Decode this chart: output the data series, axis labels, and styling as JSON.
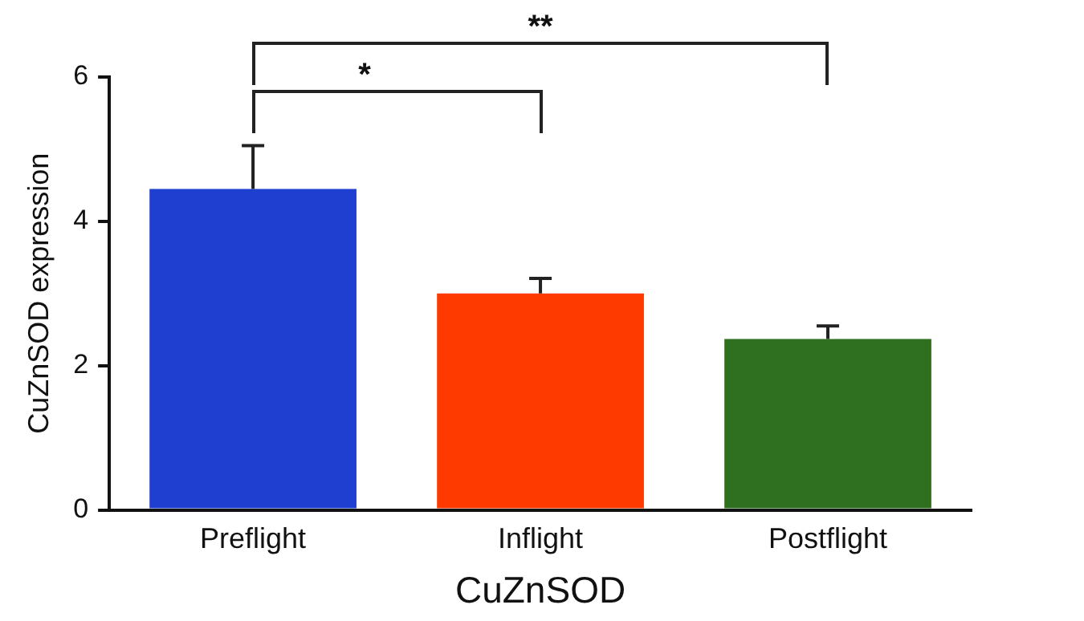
{
  "chart_data": {
    "type": "bar",
    "xlabel": "CuZnSOD",
    "ylabel": "CuZnSOD expression",
    "categories": [
      "Preflight",
      "Inflight",
      "Postflight"
    ],
    "values": [
      4.45,
      3.0,
      2.37
    ],
    "colors": [
      "#1f3fd0",
      "#ff3a00",
      "#2f7020"
    ],
    "errors": [
      [
        4.45,
        5.05
      ],
      [
        3.0,
        3.21
      ],
      [
        2.37,
        2.55
      ]
    ],
    "ylim": [
      0,
      6
    ],
    "yticks": [
      0,
      2,
      4,
      6
    ],
    "grid": false,
    "legend": false,
    "annotations": [
      "*",
      "**"
    ]
  }
}
